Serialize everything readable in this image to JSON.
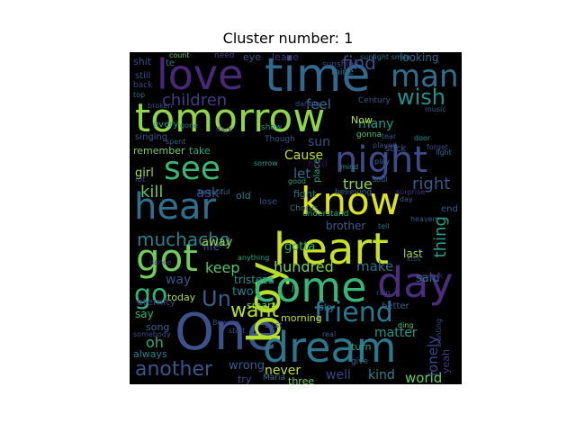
{
  "figure": {
    "title": "Cluster number: 1"
  },
  "wordcloud": {
    "background": "#000000",
    "words": [
      {
        "text": "tomorrow",
        "color": "#8fd744"
      },
      {
        "text": "One",
        "color": "#3b528b"
      },
      {
        "text": "heart",
        "color": "#c8e020"
      },
      {
        "text": "time",
        "color": "#31688e"
      },
      {
        "text": "love",
        "color": "#482878"
      },
      {
        "text": "boy",
        "color": "#b5de2b"
      },
      {
        "text": "know",
        "color": "#dde318"
      },
      {
        "text": "come",
        "color": "#35b779"
      },
      {
        "text": "dream",
        "color": "#2a788e"
      },
      {
        "text": "day",
        "color": "#472d7b"
      },
      {
        "text": "night",
        "color": "#3e4a89"
      },
      {
        "text": "see",
        "color": "#37b878"
      },
      {
        "text": "hear",
        "color": "#2c728e"
      },
      {
        "text": "got",
        "color": "#6ece58"
      },
      {
        "text": "man",
        "color": "#2e6f8e"
      },
      {
        "text": "friend",
        "color": "#2a788e"
      },
      {
        "text": "go",
        "color": "#2fb47c"
      },
      {
        "text": "wish",
        "color": "#21918c"
      },
      {
        "text": "Un",
        "color": "#355f8d"
      },
      {
        "text": "another",
        "color": "#39568c"
      },
      {
        "text": "muchacho",
        "color": "#26828e"
      },
      {
        "text": "children",
        "color": "#443a83"
      },
      {
        "text": "find",
        "color": "#3d4d8a"
      },
      {
        "text": "want",
        "color": "#b8de29"
      },
      {
        "text": "thing",
        "color": "#1fa187"
      },
      {
        "text": "kill",
        "color": "#5ec962"
      },
      {
        "text": "hundred",
        "color": "#7ad151"
      },
      {
        "text": "make",
        "color": "#2c718e"
      },
      {
        "text": "keep",
        "color": "#50c46a"
      },
      {
        "text": "true",
        "color": "#8bd646"
      },
      {
        "text": "right",
        "color": "#365c8d"
      },
      {
        "text": "oh",
        "color": "#26ad81"
      },
      {
        "text": "feel",
        "color": "#2d708e"
      },
      {
        "text": "ask",
        "color": "#404688"
      },
      {
        "text": "world",
        "color": "#63cb5f"
      },
      {
        "text": "lonely",
        "color": "#3f4788"
      },
      {
        "text": "kind",
        "color": "#25858e"
      },
      {
        "text": "well",
        "color": "#404387"
      },
      {
        "text": "never",
        "color": "#c0df25"
      },
      {
        "text": "way",
        "color": "#3b528b"
      },
      {
        "text": "wrong",
        "color": "#34608d"
      },
      {
        "text": "let",
        "color": "#2e6e8e"
      },
      {
        "text": "sun",
        "color": "#3a538b"
      },
      {
        "text": "many",
        "color": "#1f998a"
      },
      {
        "text": "matter",
        "color": "#1e9b8a"
      },
      {
        "text": "say",
        "color": "#2fb47c"
      },
      {
        "text": "two",
        "color": "#27808e"
      },
      {
        "text": "girl",
        "color": "#addc30"
      },
      {
        "text": "tristeza",
        "color": "#1f948c"
      },
      {
        "text": "eternity",
        "color": "#453882"
      },
      {
        "text": "life",
        "color": "#3b518b"
      },
      {
        "text": "away",
        "color": "#93d741"
      },
      {
        "text": "Cause",
        "color": "#c2df23"
      },
      {
        "text": "gotta",
        "color": "#2ab07f"
      },
      {
        "text": "brother",
        "color": "#365d8d"
      },
      {
        "text": "always",
        "color": "#277f8e"
      },
      {
        "text": "today",
        "color": "#a2da37"
      },
      {
        "text": "morning",
        "color": "#c5e021"
      },
      {
        "text": "smart",
        "color": "#8bd646"
      },
      {
        "text": "sky",
        "color": "#2a768e"
      },
      {
        "text": "turn",
        "color": "#22a785"
      },
      {
        "text": "song",
        "color": "#32648e"
      },
      {
        "text": "remember",
        "color": "#77d153"
      },
      {
        "text": "last",
        "color": "#a8db34"
      },
      {
        "text": "said",
        "color": "#2c738e"
      },
      {
        "text": "yeah",
        "color": "#443983"
      },
      {
        "text": "shit",
        "color": "#3f4889"
      },
      {
        "text": "Now",
        "color": "#bddf26"
      },
      {
        "text": "fight",
        "color": "#2a778e"
      },
      {
        "text": "take",
        "color": "#22a884"
      },
      {
        "text": "still",
        "color": "#3e4989"
      },
      {
        "text": "back",
        "color": "#404588"
      },
      {
        "text": "eye",
        "color": "#3a548c"
      },
      {
        "text": "leave",
        "color": "#46327e"
      },
      {
        "text": "te",
        "color": "#2a778e"
      },
      {
        "text": "mine",
        "color": "#2b748e"
      },
      {
        "text": "try",
        "color": "#3f4788"
      },
      {
        "text": "three",
        "color": "#6ccd5a"
      },
      {
        "text": "end",
        "color": "#3a548c"
      },
      {
        "text": "stick",
        "color": "#365c8d"
      },
      {
        "text": "every",
        "color": "#1fa088"
      },
      {
        "text": "singing",
        "color": "#39568c"
      },
      {
        "text": "lot",
        "color": "#404588"
      },
      {
        "text": "beautiful",
        "color": "#2e6d8e"
      },
      {
        "text": "lose",
        "color": "#3e4c8a"
      },
      {
        "text": "better",
        "color": "#35608d"
      },
      {
        "text": "hold",
        "color": "#440154"
      },
      {
        "text": "old",
        "color": "#2a788e"
      },
      {
        "text": "place",
        "color": "#22a785"
      },
      {
        "text": "21st",
        "color": "#3b528b"
      },
      {
        "text": "Maria",
        "color": "#2c728e"
      },
      {
        "text": "Beware",
        "color": "#3e4989"
      },
      {
        "text": "understand",
        "color": "#27ad81"
      },
      {
        "text": "Century",
        "color": "#38598c"
      },
      {
        "text": "gonna",
        "color": "#4ac16d"
      },
      {
        "text": "Chorus",
        "color": "#2b748e"
      },
      {
        "text": "played",
        "color": "#3c4f8a"
      },
      {
        "text": "looking",
        "color": "#31678e"
      },
      {
        "text": "sunshine",
        "color": "#3e4a89"
      },
      {
        "text": "show",
        "color": "#23898e"
      },
      {
        "text": "need",
        "color": "#424086"
      },
      {
        "text": "count",
        "color": "#5cc863"
      },
      {
        "text": "Though",
        "color": "#3b528b"
      },
      {
        "text": "good",
        "color": "#1f9e89"
      },
      {
        "text": "day",
        "color": "#365c8d"
      },
      {
        "text": "surprise",
        "color": "#463480"
      },
      {
        "text": "ding",
        "color": "#5ec962"
      },
      {
        "text": "top",
        "color": "#2e6e8e"
      },
      {
        "text": "tear",
        "color": "#3a548c"
      },
      {
        "text": "door",
        "color": "#1f988b"
      },
      {
        "text": "spent",
        "color": "#34618d"
      },
      {
        "text": "music",
        "color": "#365c8d"
      },
      {
        "text": "sunlight smile",
        "color": "#2c728e"
      },
      {
        "text": "wanting",
        "color": "#414487"
      },
      {
        "text": "broken",
        "color": "#3c4f8a"
      },
      {
        "text": "believing",
        "color": "#32658e"
      },
      {
        "text": "give",
        "color": "#33638d"
      },
      {
        "text": "forget",
        "color": "#3e4a89"
      },
      {
        "text": "sorrow",
        "color": "#1fa188"
      },
      {
        "text": "heaven",
        "color": "#38588c"
      },
      {
        "text": "dance",
        "color": "#46337f"
      },
      {
        "text": "play",
        "color": "#2c728e"
      },
      {
        "text": "somebody",
        "color": "#3b518b"
      },
      {
        "text": "anything",
        "color": "#22a884"
      },
      {
        "text": "darling",
        "color": "#3d4d8a"
      },
      {
        "text": "gone",
        "color": "#287d8e"
      },
      {
        "text": "walk",
        "color": "#482576"
      },
      {
        "text": "ja",
        "color": "#34b679"
      },
      {
        "text": "rain",
        "color": "#404688"
      },
      {
        "text": "mind",
        "color": "#1f968b"
      },
      {
        "text": "soul",
        "color": "#2c738e"
      },
      {
        "text": "start",
        "color": "#3d4e8a"
      },
      {
        "text": "kiss",
        "color": "#3e4989"
      },
      {
        "text": "light",
        "color": "#32658e"
      },
      {
        "text": "real",
        "color": "#375a8c"
      },
      {
        "text": "tell",
        "color": "#2d708e"
      },
      {
        "text": "dark",
        "color": "#424186"
      }
    ]
  }
}
